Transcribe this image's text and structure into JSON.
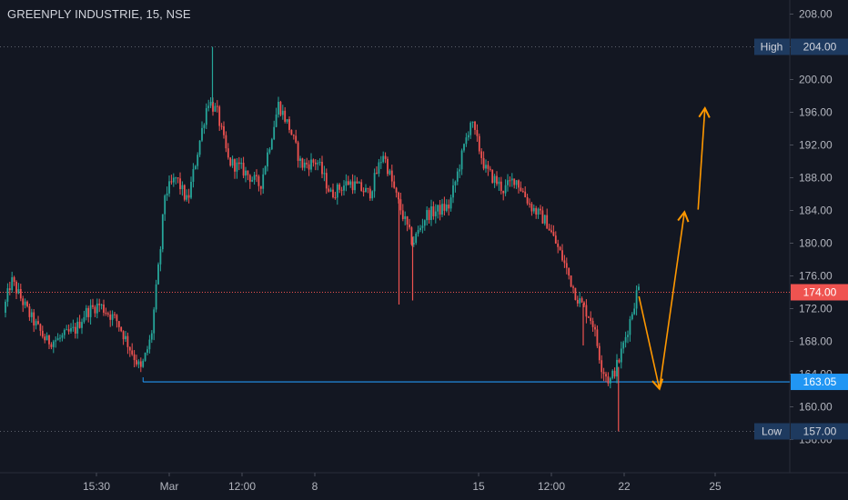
{
  "header": {
    "title": "GREENPLY INDUSTRIE, 15, NSE"
  },
  "colors": {
    "background": "#131722",
    "axis_text": "#b2b5be",
    "up_candle": "#26a69a",
    "down_candle": "#ef5350",
    "support_line": "#2196f3",
    "current_price_line": "#ef5350",
    "annotation_arrow": "#ff9800",
    "label_box": "#1e3a5f"
  },
  "chart_data": {
    "type": "candlestick",
    "ylim": [
      154,
      210
    ],
    "y_ticks": [
      156,
      160,
      164,
      168,
      172,
      176,
      180,
      184,
      188,
      192,
      196,
      200,
      204,
      208
    ],
    "y_tick_labels": [
      "156.00",
      "160.00",
      "164.00",
      "168.00",
      "172.00",
      "176.00",
      "180.00",
      "184.00",
      "188.00",
      "192.00",
      "196.00",
      "200.00",
      "204.00",
      "208.00"
    ],
    "x_tick_labels": [
      {
        "label": "15:30",
        "session": 4
      },
      {
        "label": "Mar",
        "session": 7.2
      },
      {
        "label": "12:00",
        "session": 10.4
      },
      {
        "label": "8",
        "session": 13.6
      },
      {
        "label": "15",
        "session": 20.8
      },
      {
        "label": "12:00",
        "session": 24
      },
      {
        "label": "22",
        "session": 27.2
      },
      {
        "label": "25",
        "session": 31.2
      }
    ],
    "session_range": [
      0,
      32.6
    ],
    "high": {
      "label": "High",
      "value": "204.00",
      "price": 204
    },
    "low": {
      "label": "Low",
      "value": "157.00",
      "price": 157
    },
    "last_price": {
      "value": "174.00",
      "price": 174
    },
    "support": {
      "value": "163.05",
      "price": 163.05,
      "start_session": 6.05
    },
    "path_points": [
      [
        0,
        171.5
      ],
      [
        0.35,
        175.5
      ],
      [
        1.2,
        171
      ],
      [
        1.9,
        168
      ],
      [
        2.4,
        168.2
      ],
      [
        3.2,
        169.5
      ],
      [
        3.6,
        171.5
      ],
      [
        4.2,
        172.5
      ],
      [
        5.0,
        170.5
      ],
      [
        5.6,
        167
      ],
      [
        6.05,
        164.5
      ],
      [
        6.5,
        168.5
      ],
      [
        6.9,
        179
      ],
      [
        7.1,
        186
      ],
      [
        7.6,
        188
      ],
      [
        8.1,
        185
      ],
      [
        8.6,
        192
      ],
      [
        9.0,
        197.5
      ],
      [
        9.4,
        196
      ],
      [
        9.9,
        190
      ],
      [
        10.5,
        189
      ],
      [
        11.3,
        187
      ],
      [
        12.1,
        197
      ],
      [
        12.6,
        194
      ],
      [
        13.1,
        189.5
      ],
      [
        13.8,
        190
      ],
      [
        14.4,
        186
      ],
      [
        15.2,
        187.5
      ],
      [
        16.1,
        186
      ],
      [
        16.7,
        191
      ],
      [
        17.3,
        185.5
      ],
      [
        18.0,
        180
      ],
      [
        18.6,
        183.5
      ],
      [
        19.6,
        184.5
      ],
      [
        20.1,
        190
      ],
      [
        20.55,
        195
      ],
      [
        21.2,
        189
      ],
      [
        22.0,
        186.5
      ],
      [
        22.5,
        188
      ],
      [
        23.2,
        184.5
      ],
      [
        23.9,
        182.5
      ],
      [
        24.6,
        178
      ],
      [
        25.2,
        173.5
      ],
      [
        25.9,
        170.5
      ],
      [
        26.3,
        165
      ],
      [
        26.65,
        163
      ],
      [
        27.05,
        165.5
      ],
      [
        27.5,
        170
      ],
      [
        27.9,
        174.5
      ]
    ],
    "spikes": [
      {
        "session": 9.1,
        "price": 204
      },
      {
        "session": 17.3,
        "price": 172.5
      },
      {
        "session": 17.9,
        "price": 173
      },
      {
        "session": 26.95,
        "price": 157
      },
      {
        "session": 25.4,
        "price": 167.5
      }
    ],
    "annotations": [
      {
        "type": "arrow",
        "from": [
          27.85,
          173.5
        ],
        "to": [
          28.75,
          162.2
        ]
      },
      {
        "type": "arrow",
        "from": [
          28.75,
          162.2
        ],
        "to": [
          29.85,
          183.8
        ]
      },
      {
        "type": "arrow",
        "from": [
          30.45,
          184.1
        ],
        "to": [
          30.75,
          196.5
        ]
      }
    ]
  }
}
